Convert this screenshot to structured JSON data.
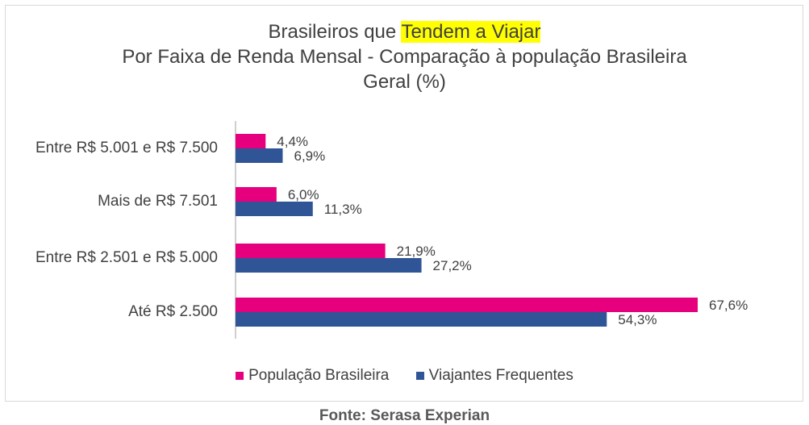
{
  "chart_data": {
    "type": "bar",
    "orientation": "horizontal",
    "title_line1_prefix": "Brasileiros que ",
    "title_line1_highlight": "Tendem a Viajar",
    "title_line2": "Por Faixa de Renda Mensal - Comparação à população Brasileira",
    "title_line3": "Geral (%)",
    "categories": [
      "Entre R$ 5.001 e R$ 7.500",
      "Mais de R$ 7.501",
      "Entre R$ 2.501 e R$ 5.000",
      "Até R$ 2.500"
    ],
    "series": [
      {
        "name": "População Brasileira",
        "values": [
          4.4,
          6.0,
          21.9,
          67.6
        ],
        "labels": [
          "4,4%",
          "6,0%",
          "21,9%",
          "67,6%"
        ],
        "color": "#e6007e"
      },
      {
        "name": "Viajantes Frequentes",
        "values": [
          6.9,
          11.3,
          27.2,
          54.3
        ],
        "labels": [
          "6,9%",
          "11,3%",
          "27,2%",
          "54,3%"
        ],
        "color": "#2f5597"
      }
    ],
    "xlim": [
      0,
      70
    ],
    "grid": false,
    "legend_position": "bottom"
  },
  "source": "Fonte: Serasa Experian",
  "highlight_color": "#ffff00"
}
